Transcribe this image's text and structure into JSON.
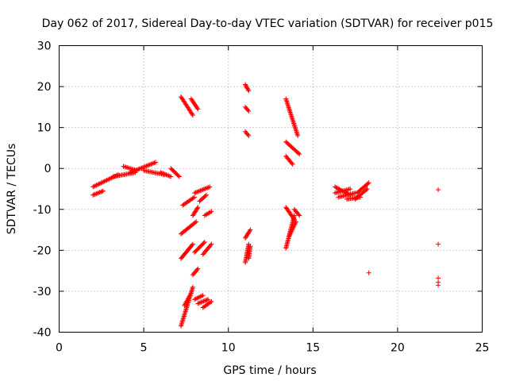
{
  "chart_data": {
    "type": "scatter",
    "title": "Day 062 of 2017, Sidereal Day-to-day VTEC variation (SDTVAR) for receiver p015",
    "xlabel": "GPS time / hours",
    "ylabel": "SDTVAR / TECUs",
    "xlim": [
      0,
      25
    ],
    "ylim": [
      -40,
      30
    ],
    "xticks": [
      "0",
      "5",
      "10",
      "15",
      "20",
      "25"
    ],
    "yticks": [
      "30",
      "20",
      "10",
      "0",
      "-10",
      "-20",
      "-30",
      "-40"
    ],
    "grid": true,
    "marker": "plus",
    "color": "#ff0000",
    "segments": [
      {
        "x0": 2.0,
        "y0": -6.5,
        "x1": 2.6,
        "y1": -5.5
      },
      {
        "x0": 2.0,
        "y0": -4.5,
        "x1": 3.5,
        "y1": -1.5
      },
      {
        "x0": 3.2,
        "y0": -2.0,
        "x1": 4.5,
        "y1": -1.0
      },
      {
        "x0": 3.8,
        "y0": 0.5,
        "x1": 4.6,
        "y1": -0.5
      },
      {
        "x0": 4.2,
        "y0": -1.0,
        "x1": 5.7,
        "y1": 1.5
      },
      {
        "x0": 5.0,
        "y0": -0.5,
        "x1": 6.2,
        "y1": -1.5
      },
      {
        "x0": 6.0,
        "y0": -1.0,
        "x1": 6.6,
        "y1": -2.0
      },
      {
        "x0": 6.6,
        "y0": 0.0,
        "x1": 7.1,
        "y1": -2.0
      },
      {
        "x0": 7.2,
        "y0": 17.5,
        "x1": 7.9,
        "y1": 13.0
      },
      {
        "x0": 7.8,
        "y0": 17.0,
        "x1": 8.2,
        "y1": 14.5
      },
      {
        "x0": 7.3,
        "y0": -9.0,
        "x1": 8.0,
        "y1": -7.0
      },
      {
        "x0": 8.0,
        "y0": -6.0,
        "x1": 8.9,
        "y1": -4.5
      },
      {
        "x0": 8.3,
        "y0": -8.0,
        "x1": 8.7,
        "y1": -6.5
      },
      {
        "x0": 8.6,
        "y0": -11.5,
        "x1": 9.0,
        "y1": -10.5
      },
      {
        "x0": 7.9,
        "y0": -11.5,
        "x1": 8.2,
        "y1": -9.5
      },
      {
        "x0": 7.2,
        "y0": -16.0,
        "x1": 8.1,
        "y1": -13.0
      },
      {
        "x0": 7.2,
        "y0": -22.0,
        "x1": 7.9,
        "y1": -18.5
      },
      {
        "x0": 8.0,
        "y0": -20.5,
        "x1": 8.6,
        "y1": -18.0
      },
      {
        "x0": 8.5,
        "y0": -21.0,
        "x1": 9.0,
        "y1": -18.5
      },
      {
        "x0": 7.9,
        "y0": -26.0,
        "x1": 8.2,
        "y1": -24.5
      },
      {
        "x0": 7.2,
        "y0": -38.5,
        "x1": 7.9,
        "y1": -29.0
      },
      {
        "x0": 7.4,
        "y0": -33.5,
        "x1": 7.8,
        "y1": -30.5
      },
      {
        "x0": 8.0,
        "y0": -32.0,
        "x1": 8.5,
        "y1": -31.0
      },
      {
        "x0": 8.2,
        "y0": -33.0,
        "x1": 8.8,
        "y1": -32.0
      },
      {
        "x0": 8.5,
        "y0": -34.0,
        "x1": 9.0,
        "y1": -32.5
      },
      {
        "x0": 11.0,
        "y0": 20.5,
        "x1": 11.2,
        "y1": 19.0
      },
      {
        "x0": 11.0,
        "y0": 15.0,
        "x1": 11.2,
        "y1": 14.0
      },
      {
        "x0": 11.0,
        "y0": 9.0,
        "x1": 11.2,
        "y1": 8.0
      },
      {
        "x0": 11.0,
        "y0": -17.0,
        "x1": 11.3,
        "y1": -15.0
      },
      {
        "x0": 11.0,
        "y0": -23.0,
        "x1": 11.2,
        "y1": -18.5
      },
      {
        "x0": 11.2,
        "y0": -22.0,
        "x1": 11.3,
        "y1": -19.0
      },
      {
        "x0": 13.4,
        "y0": 17.0,
        "x1": 14.1,
        "y1": 8.0
      },
      {
        "x0": 13.4,
        "y0": 6.5,
        "x1": 14.2,
        "y1": 3.5
      },
      {
        "x0": 13.4,
        "y0": 3.0,
        "x1": 13.8,
        "y1": 1.0
      },
      {
        "x0": 13.4,
        "y0": -9.5,
        "x1": 13.9,
        "y1": -12.5
      },
      {
        "x0": 13.9,
        "y0": -10.0,
        "x1": 14.2,
        "y1": -11.5
      },
      {
        "x0": 13.4,
        "y0": -19.5,
        "x1": 13.9,
        "y1": -11.5
      },
      {
        "x0": 13.6,
        "y0": -16.5,
        "x1": 14.0,
        "y1": -13.0
      },
      {
        "x0": 16.3,
        "y0": -4.5,
        "x1": 17.2,
        "y1": -6.5
      },
      {
        "x0": 16.3,
        "y0": -6.0,
        "x1": 17.2,
        "y1": -5.0
      },
      {
        "x0": 16.5,
        "y0": -7.0,
        "x1": 17.5,
        "y1": -6.0
      },
      {
        "x0": 17.0,
        "y0": -7.5,
        "x1": 17.8,
        "y1": -7.0
      },
      {
        "x0": 17.5,
        "y0": -7.5,
        "x1": 18.2,
        "y1": -5.0
      },
      {
        "x0": 17.6,
        "y0": -6.0,
        "x1": 18.3,
        "y1": -3.5
      }
    ],
    "points": [
      {
        "x": 18.3,
        "y": -25.5
      },
      {
        "x": 22.4,
        "y": -5.2
      },
      {
        "x": 22.4,
        "y": -18.5
      },
      {
        "x": 22.4,
        "y": -26.8
      },
      {
        "x": 22.4,
        "y": -27.8
      },
      {
        "x": 22.4,
        "y": -28.5
      }
    ]
  }
}
